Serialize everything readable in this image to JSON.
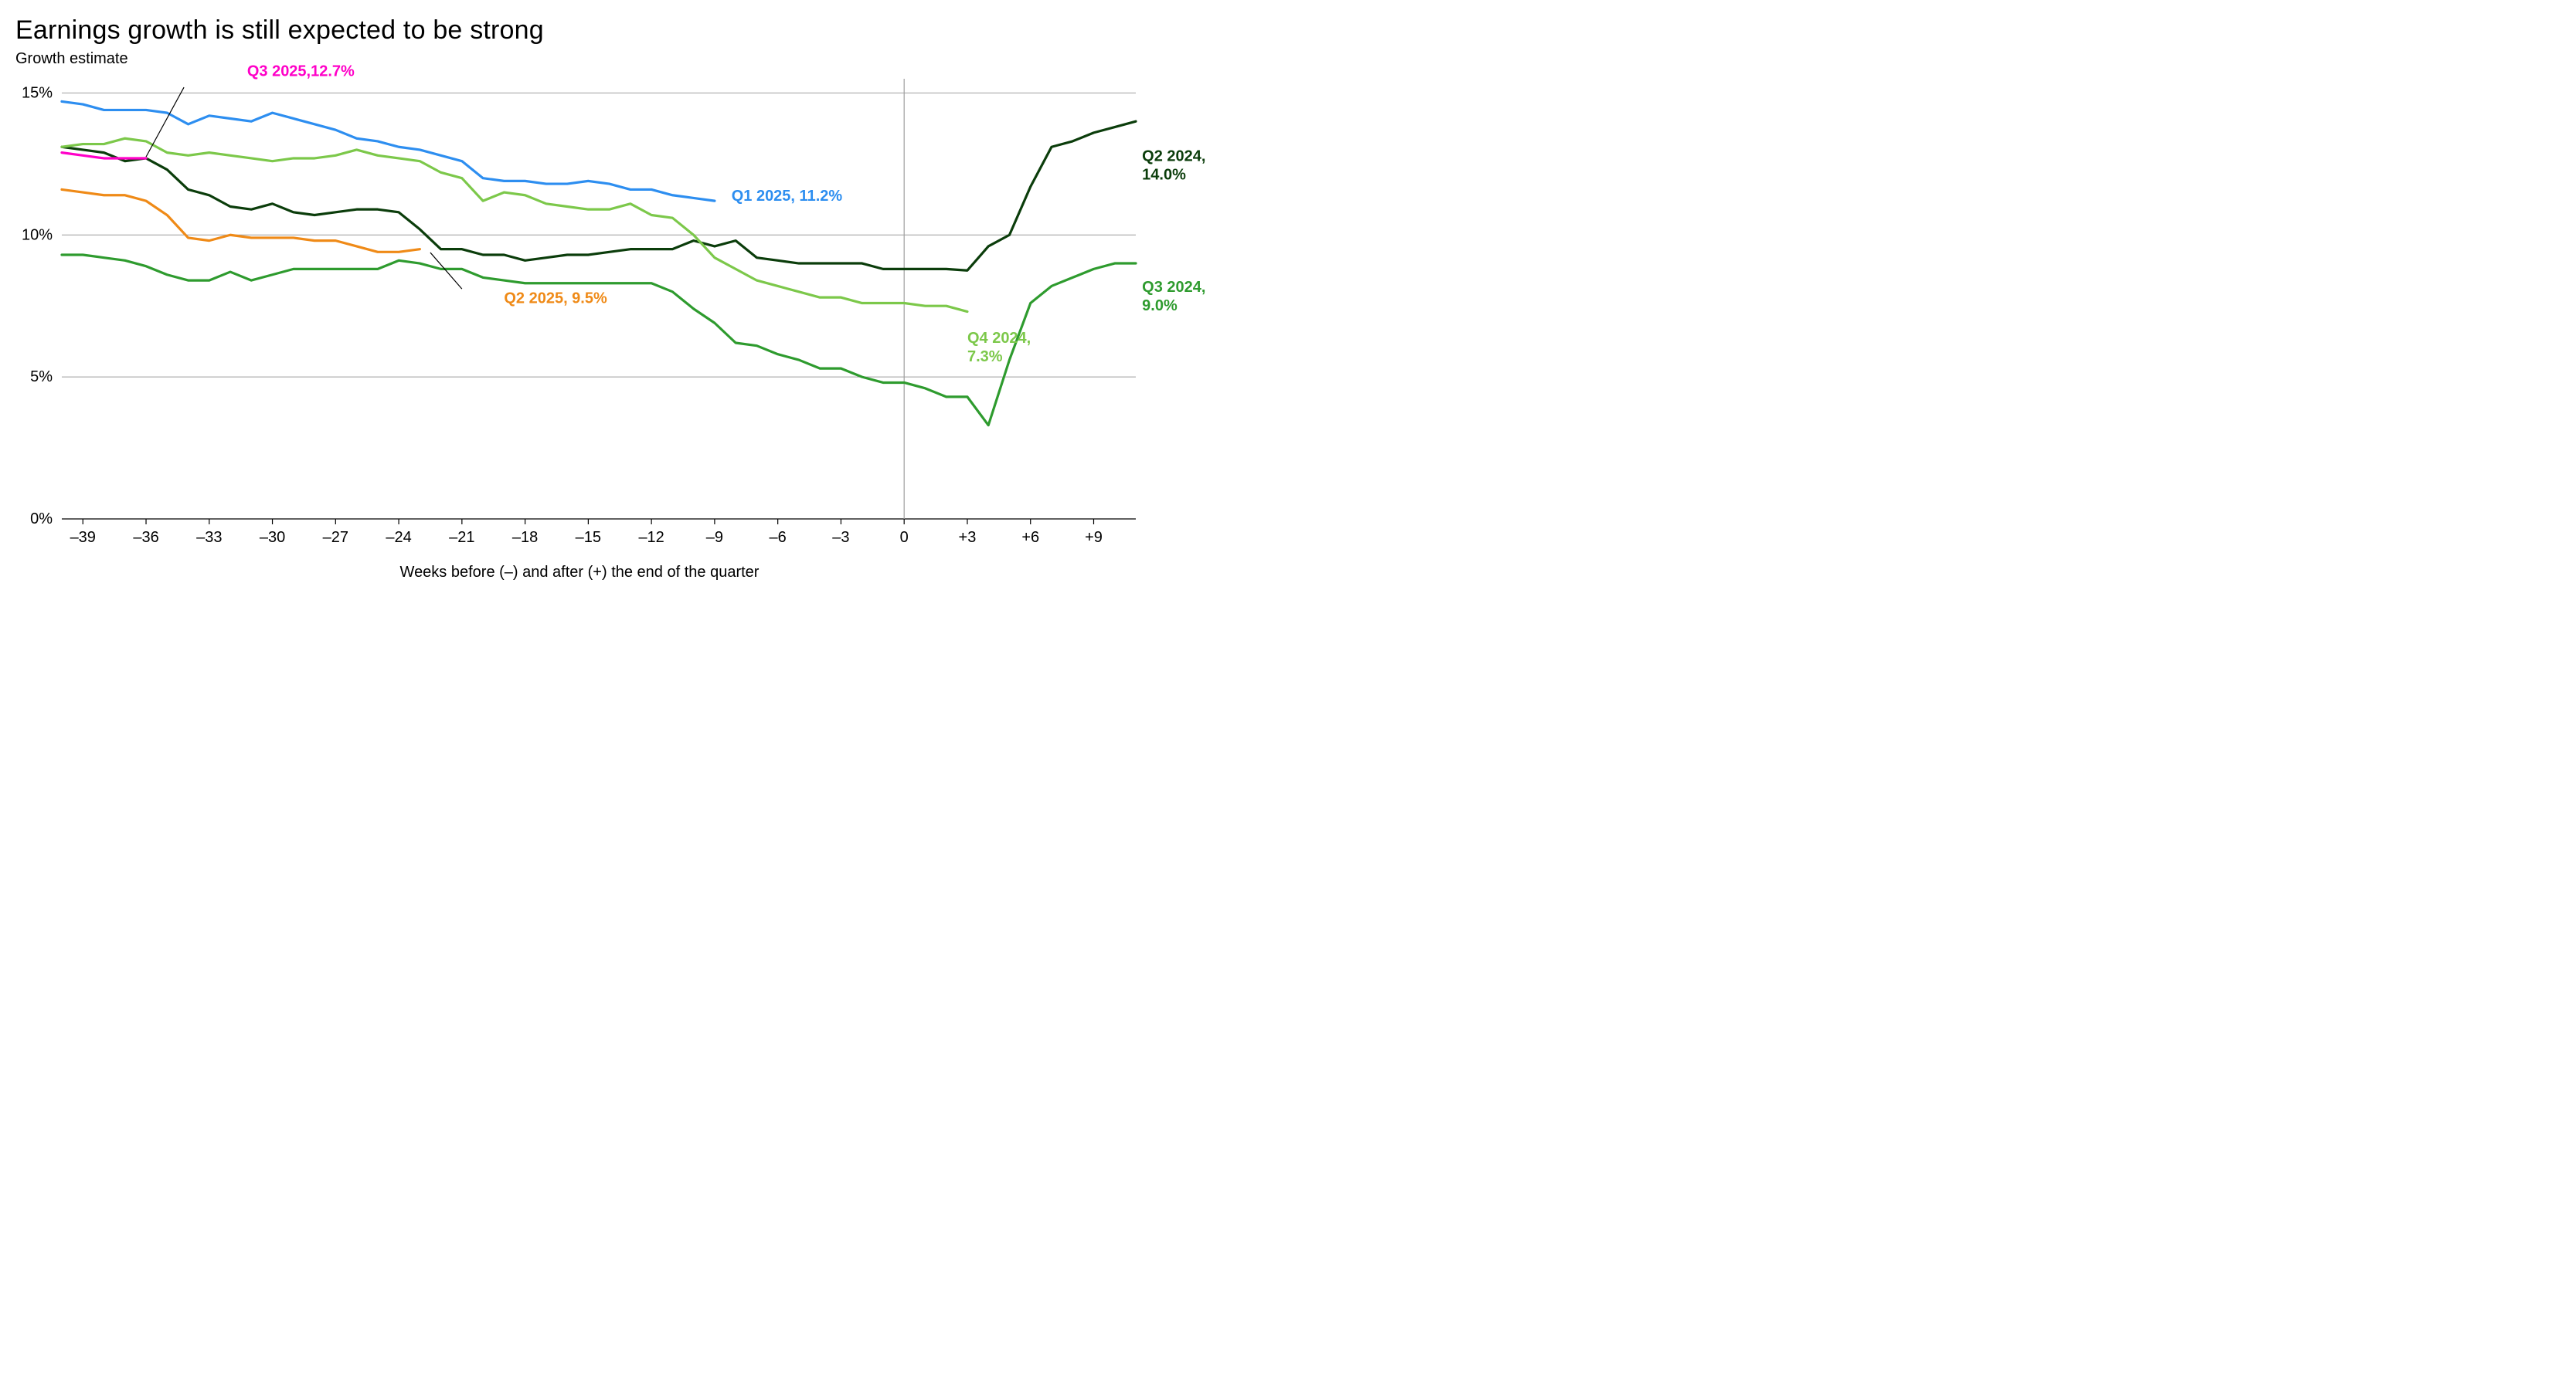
{
  "title": "Earnings growth is still expected to be strong",
  "subtitle": "Growth estimate",
  "xaxis_title": "Weeks before (–) and after (+) the end of the quarter",
  "chart": {
    "type": "line",
    "background_color": "#ffffff",
    "grid_color": "#9e9e9e",
    "axis_color": "#000000",
    "xlim": [
      -40,
      11
    ],
    "ylim": [
      0,
      15.5
    ],
    "ytick_values": [
      0,
      5,
      10,
      15
    ],
    "ytick_labels": [
      "0%",
      "5%",
      "10%",
      "15%"
    ],
    "xtick_values": [
      -39,
      -36,
      -33,
      -30,
      -27,
      -24,
      -21,
      -18,
      -15,
      -12,
      -9,
      -6,
      -3,
      0,
      3,
      6,
      9
    ],
    "xtick_labels": [
      "–39",
      "–36",
      "–33",
      "–30",
      "–27",
      "–24",
      "–21",
      "–18",
      "–15",
      "–12",
      "–9",
      "–6",
      "–3",
      "0",
      "+3",
      "+6",
      "+9"
    ],
    "reference_x": 0,
    "line_width": 3.2,
    "label_fontsize": 20,
    "tick_fontsize": 20,
    "title_fontsize": 34,
    "series": [
      {
        "name": "Q2 2024",
        "color": "#0b3d0b",
        "label_text": "Q2 2024, 14.0%",
        "label_xy": [
          11.3,
          12.6
        ],
        "data": [
          [
            -40,
            13.1
          ],
          [
            -39,
            13.0
          ],
          [
            -38,
            12.9
          ],
          [
            -37,
            12.6
          ],
          [
            -36,
            12.7
          ],
          [
            -35,
            12.3
          ],
          [
            -34,
            11.6
          ],
          [
            -33,
            11.4
          ],
          [
            -32,
            11.0
          ],
          [
            -31,
            10.9
          ],
          [
            -30,
            11.1
          ],
          [
            -29,
            10.8
          ],
          [
            -28,
            10.7
          ],
          [
            -27,
            10.8
          ],
          [
            -26,
            10.9
          ],
          [
            -25,
            10.9
          ],
          [
            -24,
            10.8
          ],
          [
            -23,
            10.2
          ],
          [
            -22,
            9.5
          ],
          [
            -21,
            9.5
          ],
          [
            -20,
            9.3
          ],
          [
            -19,
            9.3
          ],
          [
            -18,
            9.1
          ],
          [
            -17,
            9.2
          ],
          [
            -16,
            9.3
          ],
          [
            -15,
            9.3
          ],
          [
            -14,
            9.4
          ],
          [
            -13,
            9.5
          ],
          [
            -12,
            9.5
          ],
          [
            -11,
            9.5
          ],
          [
            -10,
            9.8
          ],
          [
            -9,
            9.6
          ],
          [
            -8,
            9.8
          ],
          [
            -7,
            9.2
          ],
          [
            -6,
            9.1
          ],
          [
            -5,
            9.0
          ],
          [
            -4,
            9.0
          ],
          [
            -3,
            9.0
          ],
          [
            -2,
            9.0
          ],
          [
            -1,
            8.8
          ],
          [
            0,
            8.8
          ],
          [
            1,
            8.8
          ],
          [
            2,
            8.8
          ],
          [
            3,
            8.75
          ],
          [
            4,
            9.6
          ],
          [
            5,
            10.0
          ],
          [
            6,
            11.7
          ],
          [
            7,
            13.1
          ],
          [
            8,
            13.3
          ],
          [
            9,
            13.6
          ],
          [
            10,
            13.8
          ],
          [
            11,
            14.0
          ]
        ]
      },
      {
        "name": "Q3 2024",
        "color": "#2e9b2e",
        "label_text": "Q3 2024, 9.0%",
        "label_xy": [
          11.3,
          8.0
        ],
        "data": [
          [
            -40,
            9.3
          ],
          [
            -39,
            9.3
          ],
          [
            -38,
            9.2
          ],
          [
            -37,
            9.1
          ],
          [
            -36,
            8.9
          ],
          [
            -35,
            8.6
          ],
          [
            -34,
            8.4
          ],
          [
            -33,
            8.4
          ],
          [
            -32,
            8.7
          ],
          [
            -31,
            8.4
          ],
          [
            -30,
            8.6
          ],
          [
            -29,
            8.8
          ],
          [
            -28,
            8.8
          ],
          [
            -27,
            8.8
          ],
          [
            -26,
            8.8
          ],
          [
            -25,
            8.8
          ],
          [
            -24,
            9.1
          ],
          [
            -23,
            9.0
          ],
          [
            -22,
            8.8
          ],
          [
            -21,
            8.8
          ],
          [
            -20,
            8.5
          ],
          [
            -19,
            8.4
          ],
          [
            -18,
            8.3
          ],
          [
            -17,
            8.3
          ],
          [
            -16,
            8.3
          ],
          [
            -15,
            8.3
          ],
          [
            -14,
            8.3
          ],
          [
            -13,
            8.3
          ],
          [
            -12,
            8.3
          ],
          [
            -11,
            8.0
          ],
          [
            -10,
            7.4
          ],
          [
            -9,
            6.9
          ],
          [
            -8,
            6.2
          ],
          [
            -7,
            6.1
          ],
          [
            -6,
            5.8
          ],
          [
            -5,
            5.6
          ],
          [
            -4,
            5.3
          ],
          [
            -3,
            5.3
          ],
          [
            -2,
            5.0
          ],
          [
            -1,
            4.8
          ],
          [
            0,
            4.8
          ],
          [
            1,
            4.6
          ],
          [
            2,
            4.3
          ],
          [
            3,
            4.3
          ],
          [
            4,
            3.3
          ],
          [
            5,
            5.6
          ],
          [
            6,
            7.6
          ],
          [
            7,
            8.2
          ],
          [
            8,
            8.5
          ],
          [
            9,
            8.8
          ],
          [
            10,
            9.0
          ],
          [
            11,
            9.0
          ]
        ]
      },
      {
        "name": "Q4 2024",
        "color": "#7cc84a",
        "label_text": "Q4 2024, 7.3%",
        "label_xy": [
          3.0,
          6.2
        ],
        "data": [
          [
            -40,
            13.1
          ],
          [
            -39,
            13.2
          ],
          [
            -38,
            13.2
          ],
          [
            -37,
            13.4
          ],
          [
            -36,
            13.3
          ],
          [
            -35,
            12.9
          ],
          [
            -34,
            12.8
          ],
          [
            -33,
            12.9
          ],
          [
            -32,
            12.8
          ],
          [
            -31,
            12.7
          ],
          [
            -30,
            12.6
          ],
          [
            -29,
            12.7
          ],
          [
            -28,
            12.7
          ],
          [
            -27,
            12.8
          ],
          [
            -26,
            13.0
          ],
          [
            -25,
            12.8
          ],
          [
            -24,
            12.7
          ],
          [
            -23,
            12.6
          ],
          [
            -22,
            12.2
          ],
          [
            -21,
            12.0
          ],
          [
            -20,
            11.2
          ],
          [
            -19,
            11.5
          ],
          [
            -18,
            11.4
          ],
          [
            -17,
            11.1
          ],
          [
            -16,
            11.0
          ],
          [
            -15,
            10.9
          ],
          [
            -14,
            10.9
          ],
          [
            -13,
            11.1
          ],
          [
            -12,
            10.7
          ],
          [
            -11,
            10.6
          ],
          [
            -10,
            10.0
          ],
          [
            -9,
            9.2
          ],
          [
            -8,
            8.8
          ],
          [
            -7,
            8.4
          ],
          [
            -6,
            8.2
          ],
          [
            -5,
            8.0
          ],
          [
            -4,
            7.8
          ],
          [
            -3,
            7.8
          ],
          [
            -2,
            7.6
          ],
          [
            -1,
            7.6
          ],
          [
            0,
            7.6
          ],
          [
            1,
            7.5
          ],
          [
            2,
            7.5
          ],
          [
            3,
            7.3
          ]
        ]
      },
      {
        "name": "Q1 2025",
        "color": "#2d8ef0",
        "label_text": "Q1 2025, 11.2%",
        "label_xy": [
          -8.2,
          11.2
        ],
        "data": [
          [
            -40,
            14.7
          ],
          [
            -39,
            14.6
          ],
          [
            -38,
            14.4
          ],
          [
            -37,
            14.4
          ],
          [
            -36,
            14.4
          ],
          [
            -35,
            14.3
          ],
          [
            -34,
            13.9
          ],
          [
            -33,
            14.2
          ],
          [
            -32,
            14.1
          ],
          [
            -31,
            14.0
          ],
          [
            -30,
            14.3
          ],
          [
            -29,
            14.1
          ],
          [
            -28,
            13.9
          ],
          [
            -27,
            13.7
          ],
          [
            -26,
            13.4
          ],
          [
            -25,
            13.3
          ],
          [
            -24,
            13.1
          ],
          [
            -23,
            13.0
          ],
          [
            -22,
            12.8
          ],
          [
            -21,
            12.6
          ],
          [
            -20,
            12.0
          ],
          [
            -19,
            11.9
          ],
          [
            -18,
            11.9
          ],
          [
            -17,
            11.8
          ],
          [
            -16,
            11.8
          ],
          [
            -15,
            11.9
          ],
          [
            -14,
            11.8
          ],
          [
            -13,
            11.6
          ],
          [
            -12,
            11.6
          ],
          [
            -11,
            11.4
          ],
          [
            -10,
            11.3
          ],
          [
            -9,
            11.2
          ]
        ]
      },
      {
        "name": "Q2 2025",
        "color": "#ef8a17",
        "label_text": "Q2 2025, 9.5%",
        "label_xy": [
          -19.0,
          7.6
        ],
        "leader": [
          [
            -21.0,
            8.1
          ],
          [
            -22.5,
            9.38
          ]
        ],
        "data": [
          [
            -40,
            11.6
          ],
          [
            -39,
            11.5
          ],
          [
            -38,
            11.4
          ],
          [
            -37,
            11.4
          ],
          [
            -36,
            11.2
          ],
          [
            -35,
            10.7
          ],
          [
            -34,
            9.9
          ],
          [
            -33,
            9.8
          ],
          [
            -32,
            10.0
          ],
          [
            -31,
            9.9
          ],
          [
            -30,
            9.9
          ],
          [
            -29,
            9.9
          ],
          [
            -28,
            9.8
          ],
          [
            -27,
            9.8
          ],
          [
            -26,
            9.6
          ],
          [
            -25,
            9.4
          ],
          [
            -24,
            9.4
          ],
          [
            -23,
            9.5
          ]
        ]
      },
      {
        "name": "Q3 2025",
        "color": "#ff00c8",
        "label_text": "Q3 2025,12.7%",
        "label_xy": [
          -31.2,
          15.6
        ],
        "leader": [
          [
            -34.2,
            15.2
          ],
          [
            -36.0,
            12.75
          ]
        ],
        "data": [
          [
            -40,
            12.9
          ],
          [
            -39,
            12.8
          ],
          [
            -38,
            12.7
          ],
          [
            -37,
            12.7
          ],
          [
            -36,
            12.7
          ]
        ]
      }
    ]
  }
}
